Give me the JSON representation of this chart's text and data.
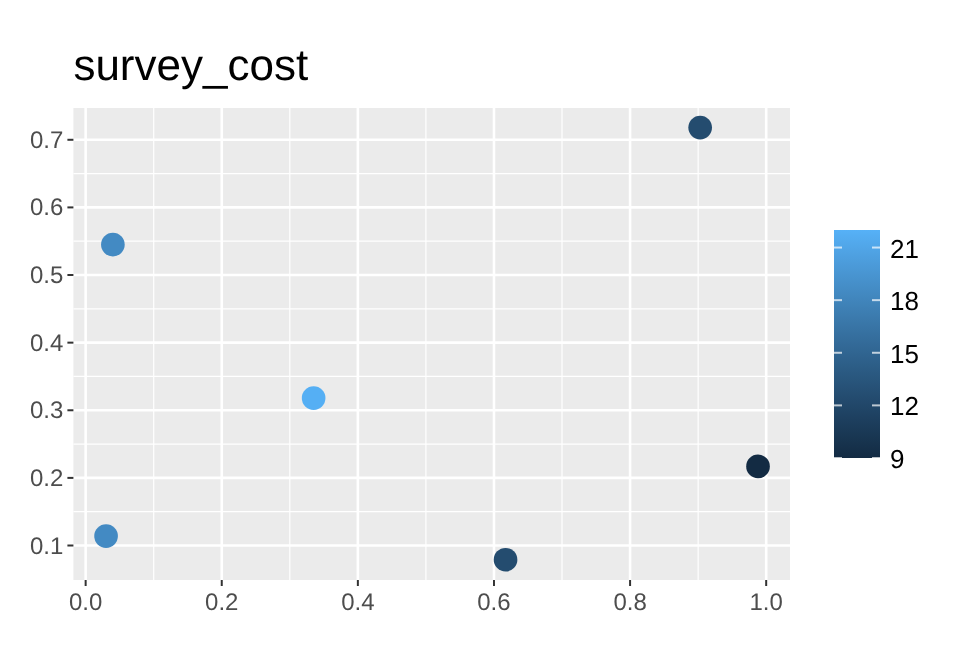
{
  "chart_data": {
    "type": "scatter",
    "title": "survey_cost",
    "x": [
      0.04,
      0.03,
      0.335,
      0.617,
      0.903,
      0.988
    ],
    "values": [
      0.545,
      0.114,
      0.318,
      0.079,
      0.718,
      0.217
    ],
    "cvalues": [
      18.5,
      18.5,
      21.8,
      12.5,
      12.5,
      9
    ],
    "xlim": [
      -0.018,
      1.035
    ],
    "ylim": [
      0.049,
      0.747
    ],
    "xticks": [
      {
        "value": 0,
        "label": "0.0"
      },
      0.2,
      0.4,
      0.6,
      0.8,
      {
        "value": 1,
        "label": "1.0"
      }
    ],
    "yticks": [
      0.1,
      0.2,
      0.3,
      0.4,
      0.5,
      0.6,
      0.7
    ],
    "clim": [
      9,
      22
    ],
    "cticks": [
      9,
      12,
      15,
      18,
      21
    ],
    "grid": true,
    "marker": "circle"
  }
}
